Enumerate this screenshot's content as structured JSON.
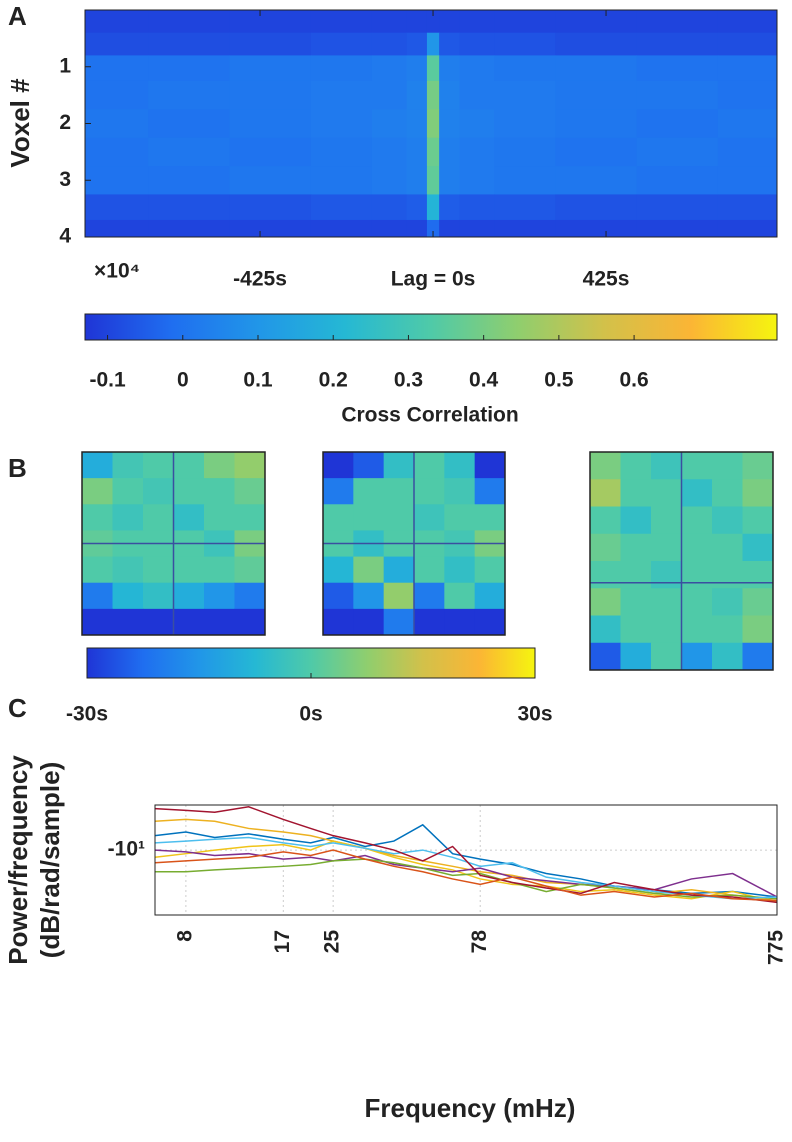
{
  "chart_data": [
    {
      "type": "heatmap",
      "label": "A",
      "ylabel": "Voxel #",
      "y_exponent": "×10⁴",
      "x": [
        -800,
        -600,
        -400,
        -200,
        -100,
        -30,
        0,
        30,
        100,
        200,
        400,
        600,
        800
      ],
      "y": [
        0.2,
        0.6,
        1.0,
        1.5,
        2.0,
        2.5,
        3.0,
        3.5,
        3.9
      ],
      "values": [
        [
          -0.1,
          -0.1,
          -0.1,
          -0.1,
          -0.1,
          -0.1,
          -0.1,
          -0.1,
          -0.1,
          -0.1,
          -0.1,
          -0.1,
          -0.1
        ],
        [
          -0.08,
          -0.08,
          -0.08,
          -0.07,
          -0.07,
          -0.06,
          0.1,
          -0.06,
          -0.07,
          -0.07,
          -0.08,
          -0.08,
          -0.08
        ],
        [
          0.0,
          0.0,
          0.01,
          0.01,
          0.02,
          0.03,
          0.35,
          0.03,
          0.02,
          0.01,
          0.01,
          0.0,
          0.0
        ],
        [
          0.0,
          0.01,
          0.01,
          0.02,
          0.02,
          0.04,
          0.4,
          0.04,
          0.02,
          0.02,
          0.01,
          0.01,
          0.0
        ],
        [
          0.01,
          0.0,
          0.01,
          0.02,
          0.03,
          0.04,
          0.42,
          0.04,
          0.03,
          0.02,
          0.01,
          0.0,
          0.01
        ],
        [
          0.0,
          0.01,
          0.0,
          0.01,
          0.02,
          0.03,
          0.38,
          0.03,
          0.02,
          0.01,
          0.0,
          0.01,
          0.0
        ],
        [
          0.0,
          0.0,
          0.01,
          0.01,
          0.02,
          0.03,
          0.36,
          0.03,
          0.02,
          0.01,
          0.01,
          0.0,
          0.0
        ],
        [
          -0.07,
          -0.07,
          -0.07,
          -0.06,
          -0.06,
          -0.05,
          0.2,
          -0.05,
          -0.06,
          -0.06,
          -0.07,
          -0.07,
          -0.07
        ],
        [
          -0.1,
          -0.1,
          -0.1,
          -0.1,
          -0.1,
          -0.1,
          -0.02,
          -0.1,
          -0.1,
          -0.1,
          -0.1,
          -0.1,
          -0.1
        ]
      ],
      "xlim": [
        -855,
        845
      ],
      "xticks": [
        {
          "value": -425,
          "label": "-425s"
        },
        {
          "value": 0,
          "label": "Lag = 0s"
        },
        {
          "value": 425,
          "label": "425s"
        }
      ],
      "ylim": [
        0,
        4
      ],
      "yticks": [
        1,
        2,
        3,
        4
      ],
      "clim": [
        -0.13,
        0.79
      ],
      "cticks": [
        -0.1,
        0,
        0.1,
        0.2,
        0.3,
        0.4,
        0.5,
        0.6
      ],
      "clabel": "Cross Correlation",
      "colormap": [
        "#1f35d6",
        "#1f6ef0",
        "#2196e8",
        "#25b8d4",
        "#4fcaa8",
        "#8fce6e",
        "#d2c14a",
        "#fbb535",
        "#f5f50f"
      ]
    },
    {
      "type": "slices",
      "label": "B",
      "images": [
        [
          [
            -10,
            -2,
            0,
            0,
            5,
            8
          ],
          [
            5,
            0,
            -2,
            0,
            0,
            3
          ],
          [
            0,
            -3,
            0,
            -5,
            0,
            0
          ],
          [
            2,
            0,
            0,
            0,
            -3,
            5
          ],
          [
            0,
            -2,
            0,
            0,
            0,
            2
          ],
          [
            -20,
            -8,
            -5,
            -10,
            -15,
            -20
          ],
          [
            -30,
            -30,
            -30,
            -30,
            -30,
            -30
          ]
        ],
        [
          [
            -30,
            -25,
            -5,
            0,
            -5,
            -30
          ],
          [
            -20,
            0,
            0,
            0,
            -2,
            -20
          ],
          [
            0,
            0,
            0,
            -3,
            0,
            0
          ],
          [
            0,
            -5,
            0,
            0,
            -2,
            5
          ],
          [
            -8,
            5,
            -10,
            0,
            -5,
            0
          ],
          [
            -25,
            -15,
            8,
            -20,
            0,
            -10
          ],
          [
            -30,
            -30,
            -20,
            -30,
            -30,
            -30
          ]
        ],
        [
          [
            5,
            0,
            -3,
            0,
            0,
            3
          ],
          [
            10,
            0,
            0,
            -5,
            0,
            5
          ],
          [
            0,
            -5,
            0,
            0,
            -3,
            0
          ],
          [
            3,
            0,
            0,
            0,
            0,
            -5
          ],
          [
            0,
            0,
            -3,
            0,
            0,
            0
          ],
          [
            5,
            0,
            0,
            0,
            -2,
            3
          ],
          [
            -5,
            0,
            0,
            0,
            0,
            5
          ],
          [
            -25,
            -10,
            0,
            -15,
            -5,
            -20
          ]
        ]
      ],
      "clim": [
        -30,
        30
      ],
      "cticks": [
        {
          "value": -30,
          "label": "-30s"
        },
        {
          "value": 0,
          "label": "0s"
        },
        {
          "value": 30,
          "label": "30s"
        }
      ],
      "colormap": [
        "#1f35d6",
        "#1f6ef0",
        "#2196e8",
        "#25b8d4",
        "#4fcaa8",
        "#8fce6e",
        "#d2c14a",
        "#fbb535",
        "#f5f50f"
      ]
    },
    {
      "type": "line",
      "label": "C",
      "xlabel": "Frequency (mHz)",
      "ylabel": [
        "Power/frequency",
        "(dB/rad/sample)"
      ],
      "x": [
        6.3,
        8,
        10,
        13,
        17,
        21,
        25,
        32,
        40,
        50,
        63,
        78,
        100,
        130,
        170,
        220,
        300,
        400,
        550,
        775
      ],
      "series": [
        {
          "color": "#0072bd",
          "values": [
            -9.2,
            -9.0,
            -9.3,
            -9.1,
            -9.4,
            -9.6,
            -9.3,
            -9.8,
            -9.5,
            -8.6,
            -10.2,
            -10.5,
            -10.8,
            -11.3,
            -11.6,
            -12.0,
            -12.2,
            -12.4,
            -12.3,
            -12.6
          ]
        },
        {
          "color": "#edb120",
          "values": [
            -8.4,
            -8.3,
            -8.4,
            -8.8,
            -9.0,
            -9.2,
            -9.5,
            -9.9,
            -10.3,
            -10.6,
            -10.9,
            -11.2,
            -11.4,
            -11.8,
            -11.9,
            -12.1,
            -12.4,
            -12.2,
            -12.5,
            -12.8
          ]
        },
        {
          "color": "#f0c419",
          "values": [
            -10.4,
            -10.2,
            -10.0,
            -9.8,
            -9.7,
            -10.0,
            -9.5,
            -9.9,
            -10.4,
            -10.8,
            -11.1,
            -11.6,
            -11.9,
            -12.0,
            -12.3,
            -12.2,
            -12.5,
            -12.7,
            -12.3,
            -12.9
          ]
        },
        {
          "color": "#7e2f8e",
          "values": [
            -10.0,
            -10.1,
            -10.3,
            -10.2,
            -10.5,
            -10.4,
            -10.6,
            -10.3,
            -10.8,
            -11.0,
            -11.2,
            -11.0,
            -11.5,
            -11.7,
            -11.9,
            -12.0,
            -12.2,
            -11.6,
            -11.3,
            -12.6
          ]
        },
        {
          "color": "#77ac30",
          "values": [
            -11.2,
            -11.2,
            -11.1,
            -11.0,
            -10.9,
            -10.8,
            -10.6,
            -10.5,
            -10.7,
            -11.0,
            -11.4,
            -11.3,
            -11.8,
            -12.3,
            -11.9,
            -12.1,
            -12.4,
            -12.6,
            -12.5,
            -12.7
          ]
        },
        {
          "color": "#4dbeee",
          "values": [
            -9.6,
            -9.5,
            -9.4,
            -9.3,
            -9.6,
            -9.8,
            -9.6,
            -9.9,
            -10.2,
            -10.0,
            -10.4,
            -10.9,
            -10.7,
            -11.5,
            -11.8,
            -12.0,
            -12.3,
            -12.5,
            -12.7,
            -12.6
          ]
        },
        {
          "color": "#a2142f",
          "values": [
            -7.7,
            -7.8,
            -7.9,
            -7.6,
            -8.3,
            -8.8,
            -9.2,
            -9.6,
            -10.0,
            -10.6,
            -9.8,
            -11.4,
            -11.8,
            -12.1,
            -12.4,
            -11.8,
            -12.2,
            -12.5,
            -12.6,
            -12.9
          ]
        },
        {
          "color": "#d95319",
          "values": [
            -10.7,
            -10.6,
            -10.5,
            -10.4,
            -10.1,
            -10.3,
            -10.0,
            -10.5,
            -10.9,
            -11.2,
            -11.6,
            -11.9,
            -11.5,
            -12.0,
            -12.5,
            -12.3,
            -12.6,
            -12.4,
            -12.7,
            -12.8
          ]
        }
      ],
      "xlim": [
        6.3,
        775
      ],
      "xscale": "log",
      "xticks": [
        8,
        17,
        25,
        78,
        775
      ],
      "ylim": [
        -13.6,
        -7.5
      ],
      "yticks": [
        {
          "value": -10,
          "label": "-10¹"
        }
      ],
      "grid": true
    }
  ]
}
